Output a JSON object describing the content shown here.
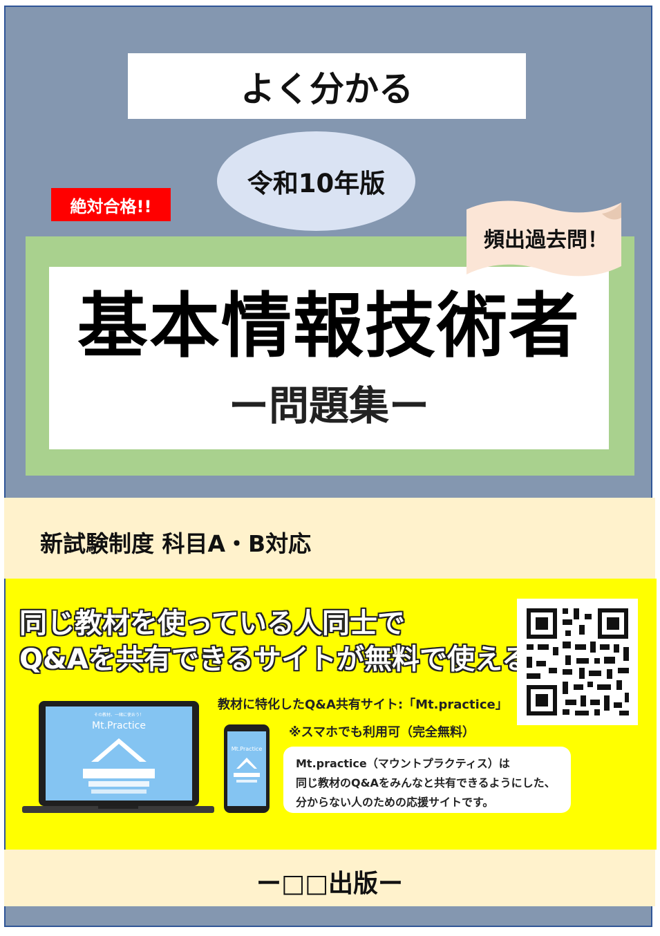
{
  "cover": {
    "series_label": "よく分かる",
    "edition": "令和10年版",
    "badge": "絶対合格!!",
    "ribbon": "頻出過去問！",
    "title": "基本情報技術者",
    "subtitle": "ー問題集ー",
    "exam_note": "新試験制度 科目A・B対応",
    "publisher": "ー□□出版ー"
  },
  "promo": {
    "headline_line1": "同じ教材を使っている人同士で",
    "headline_line2": "Q&Aを共有できるサイトが無料で使える!!",
    "site_label": "教材に特化したQ&A共有サイト:「Mt.practice」",
    "mobile_note": "※スマホでも利用可（完全無料）",
    "description_line1": "Mt.practice（マウントプラクティス）は",
    "description_line2": "同じ教材のQ&Aをみんなと共有できるようにした、",
    "description_line3": "分からない人のための応援サイトです。",
    "app_name": "Mt.Practice",
    "screen_tagline": "その教材、一緒に使おう！"
  },
  "icons": {
    "qr": "qr-code-icon",
    "laptop": "laptop-icon",
    "phone": "smartphone-icon",
    "mountain": "mountain-logo-icon"
  },
  "colors": {
    "cover_bg": "#8497b0",
    "green_frame": "#a9d18e",
    "badge_red": "#ff0000",
    "yellow_band": "#ffff00",
    "cream": "#fff2cc",
    "ellipse": "#dae3f3",
    "ribbon": "#fbe5d6"
  }
}
